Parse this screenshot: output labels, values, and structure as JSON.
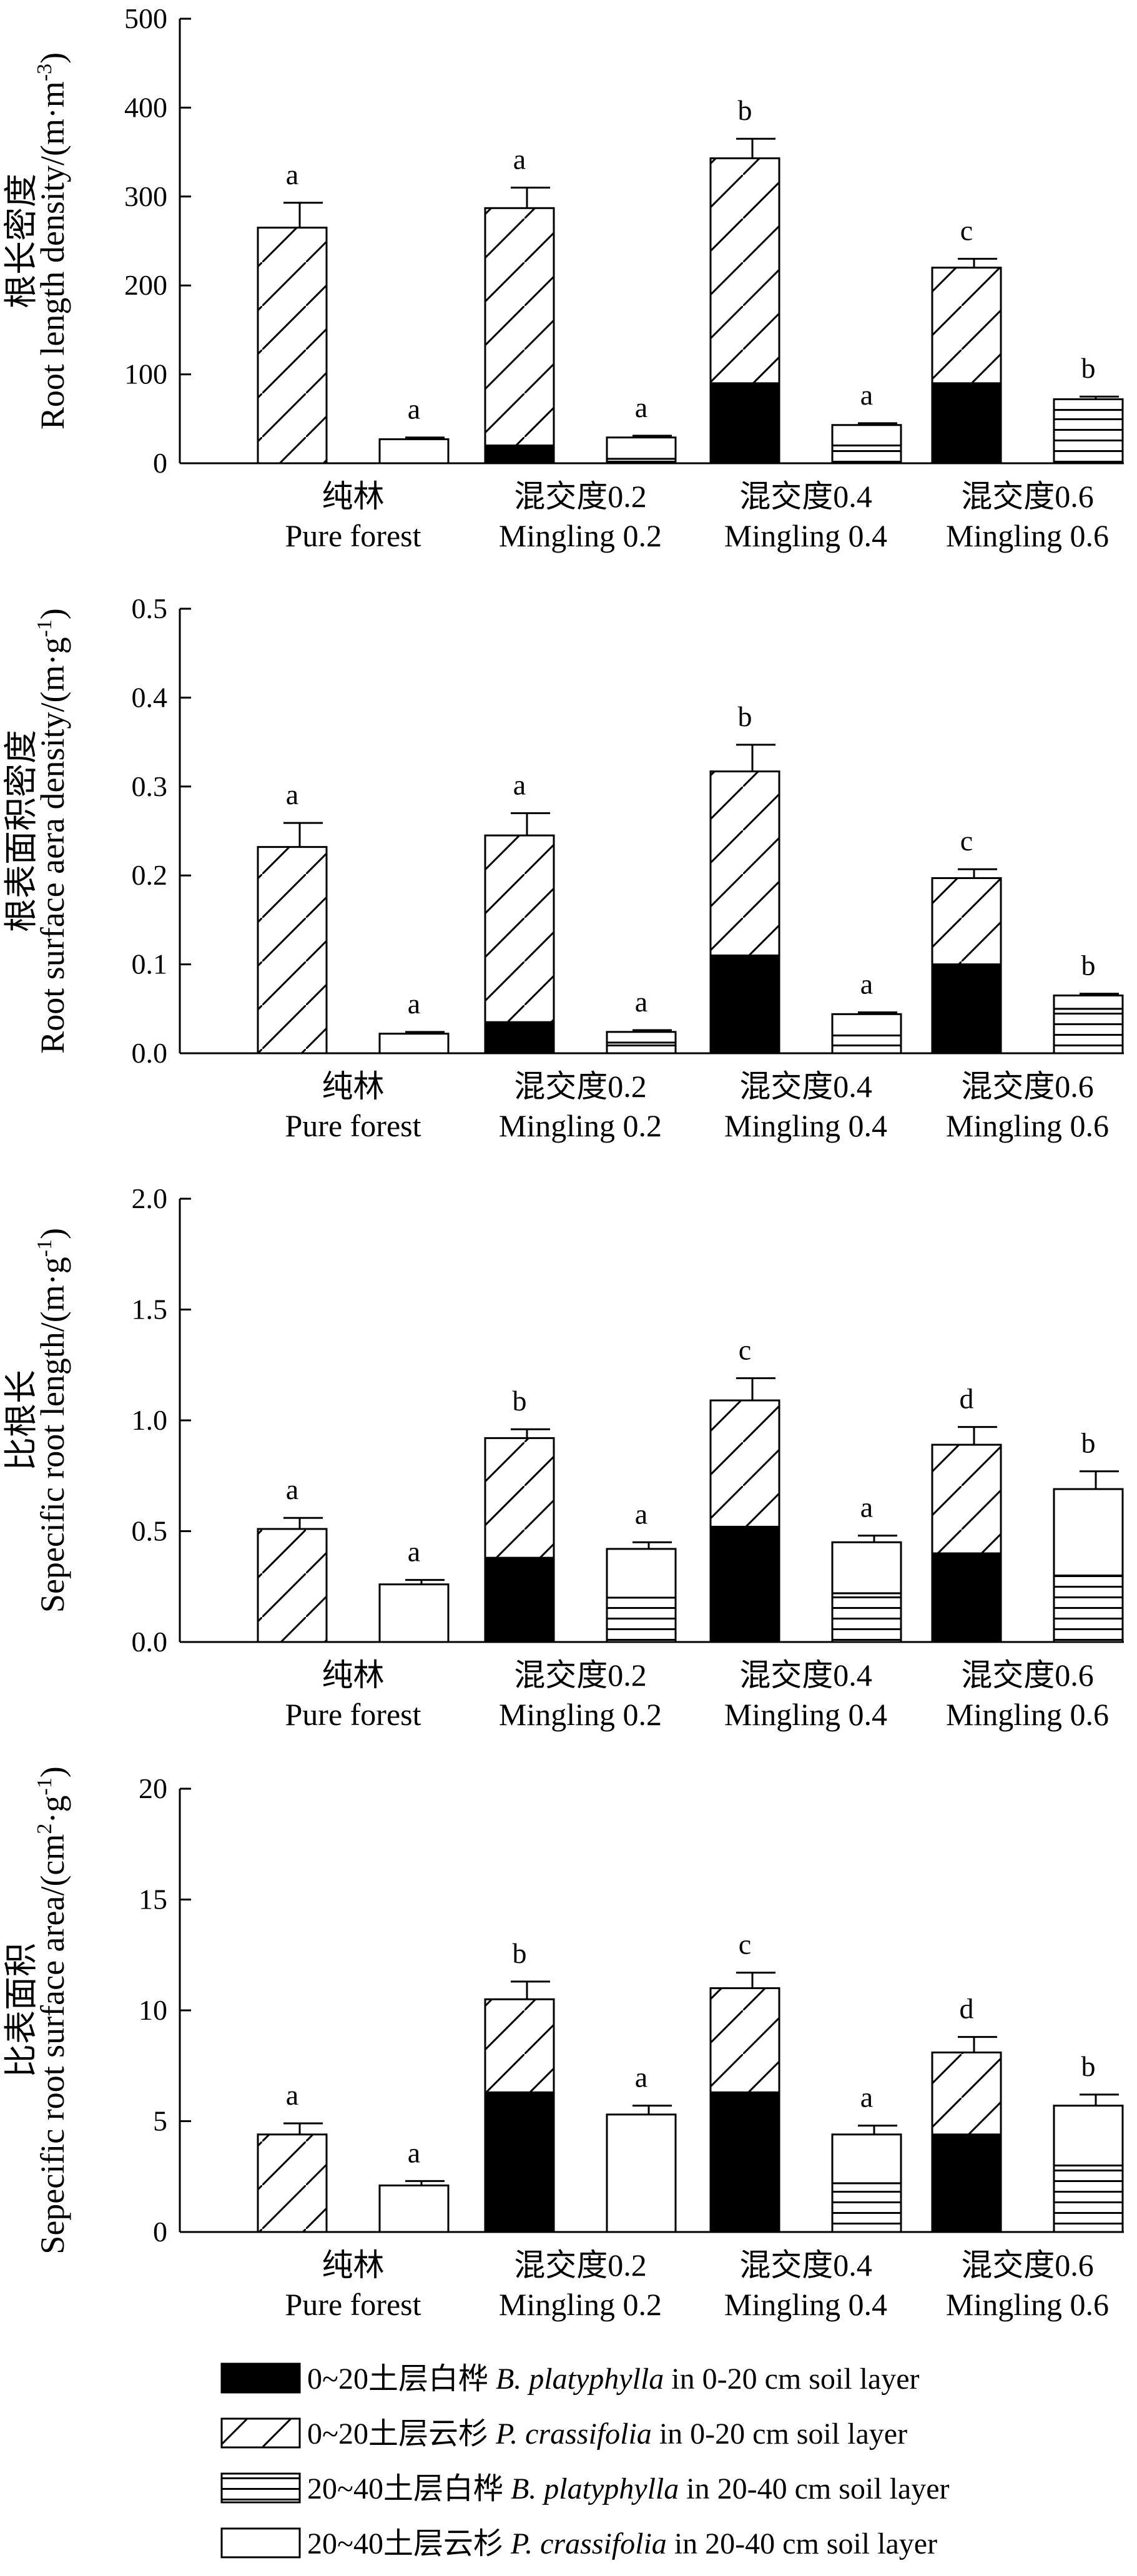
{
  "legend": [
    {
      "key": "bp0",
      "cn": "0~20土层白桦",
      "sp": "B. platyphylla",
      "rest": " in 0-20 cm soil layer",
      "fill": "solid"
    },
    {
      "key": "pc0",
      "cn": "0~20土层云杉",
      "sp": "P. crassifolia",
      "rest": " in 0-20 cm soil layer",
      "fill": "diag"
    },
    {
      "key": "bp2",
      "cn": "20~40土层白桦",
      "sp": "B. platyphylla",
      "rest": " in 20-40 cm soil layer",
      "fill": "horiz"
    },
    {
      "key": "pc2",
      "cn": "20~40土层云杉",
      "sp": "P. crassifolia",
      "rest": " in 20-40 cm soil layer",
      "fill": "open"
    }
  ],
  "chart_data": [
    {
      "type": "bar",
      "stacked": true,
      "ylabel_cn": "根长密度",
      "ylabel_en": "Root length density/(m·m",
      "ylabel_sup": "-3",
      "ylabel_end": ")",
      "ylim": [
        0,
        500
      ],
      "yticks": [
        "0",
        "100",
        "200",
        "300",
        "400",
        "500"
      ],
      "categories": [
        {
          "cn": "纯林",
          "en": "Pure forest"
        },
        {
          "cn": "混交度0.2",
          "en": "Mingling 0.2"
        },
        {
          "cn": "混交度0.4",
          "en": "Mingling 0.4"
        },
        {
          "cn": "混交度0.6",
          "en": "Mingling 0.6"
        }
      ],
      "topsoil": {
        "bp": [
          0,
          20,
          90,
          90
        ],
        "pc": [
          265,
          267,
          253,
          130
        ],
        "err": [
          28,
          23,
          22,
          10
        ],
        "letters": [
          "a",
          "a",
          "b",
          "c"
        ]
      },
      "subsoil": {
        "bp": [
          0,
          5,
          20,
          60
        ],
        "pc": [
          27,
          24,
          23,
          12
        ],
        "err": [
          2,
          2,
          2,
          3
        ],
        "letters": [
          "a",
          "a",
          "a",
          "b"
        ]
      }
    },
    {
      "type": "bar",
      "stacked": true,
      "ylabel_cn": "根表面积密度",
      "ylabel_en": "Root surface aera density/(m·g",
      "ylabel_sup": "-1",
      "ylabel_end": ")",
      "ylim": [
        0,
        0.5
      ],
      "yticks": [
        "0.0",
        "0.1",
        "0.2",
        "0.3",
        "0.4",
        "0.5"
      ],
      "categories": [
        {
          "cn": "纯林",
          "en": "Pure forest"
        },
        {
          "cn": "混交度0.2",
          "en": "Mingling 0.2"
        },
        {
          "cn": "混交度0.4",
          "en": "Mingling 0.4"
        },
        {
          "cn": "混交度0.6",
          "en": "Mingling 0.6"
        }
      ],
      "topsoil": {
        "bp": [
          0,
          0.035,
          0.11,
          0.1
        ],
        "pc": [
          0.232,
          0.21,
          0.207,
          0.097
        ],
        "err": [
          0.027,
          0.025,
          0.03,
          0.01
        ],
        "letters": [
          "a",
          "a",
          "b",
          "c"
        ]
      },
      "subsoil": {
        "bp": [
          0,
          0.012,
          0.02,
          0.05
        ],
        "pc": [
          0.022,
          0.012,
          0.024,
          0.015
        ],
        "err": [
          0.002,
          0.002,
          0.002,
          0.002
        ],
        "letters": [
          "a",
          "a",
          "a",
          "b"
        ]
      }
    },
    {
      "type": "bar",
      "stacked": true,
      "ylabel_cn": "比根长",
      "ylabel_en": "Sepecific root length/(m·g",
      "ylabel_sup": "-1",
      "ylabel_end": ")",
      "ylim": [
        0,
        2.0
      ],
      "yticks": [
        "0.0",
        "0.5",
        "1.0",
        "1.5",
        "2.0"
      ],
      "categories": [
        {
          "cn": "纯林",
          "en": "Pure forest"
        },
        {
          "cn": "混交度0.2",
          "en": "Mingling 0.2"
        },
        {
          "cn": "混交度0.4",
          "en": "Mingling 0.4"
        },
        {
          "cn": "混交度0.6",
          "en": "Mingling 0.6"
        }
      ],
      "topsoil": {
        "bp": [
          0,
          0.38,
          0.52,
          0.4
        ],
        "pc": [
          0.51,
          0.54,
          0.57,
          0.49
        ],
        "err": [
          0.05,
          0.04,
          0.1,
          0.08
        ],
        "letters": [
          "a",
          "b",
          "c",
          "d"
        ]
      },
      "subsoil": {
        "bp": [
          0,
          0.2,
          0.22,
          0.3
        ],
        "pc": [
          0.26,
          0.22,
          0.23,
          0.39
        ],
        "err": [
          0.02,
          0.03,
          0.03,
          0.08
        ],
        "letters": [
          "a",
          "a",
          "a",
          "b"
        ]
      }
    },
    {
      "type": "bar",
      "stacked": true,
      "ylabel_cn": "比表面积",
      "ylabel_en": "Sepecific root surface area/(cm",
      "ylabel_sup": "2",
      "ylabel_mid": "·g",
      "ylabel_sup2": "-1",
      "ylabel_end": ")",
      "ylim": [
        0,
        20
      ],
      "yticks": [
        "0",
        "5",
        "10",
        "15",
        "20"
      ],
      "categories": [
        {
          "cn": "纯林",
          "en": "Pure forest"
        },
        {
          "cn": "混交度0.2",
          "en": "Mingling 0.2"
        },
        {
          "cn": "混交度0.4",
          "en": "Mingling 0.4"
        },
        {
          "cn": "混交度0.6",
          "en": "Mingling 0.6"
        }
      ],
      "topsoil": {
        "bp": [
          0,
          6.3,
          6.3,
          4.4
        ],
        "pc": [
          4.4,
          4.2,
          4.7,
          3.7
        ],
        "err": [
          0.5,
          0.8,
          0.7,
          0.7
        ],
        "letters": [
          "a",
          "b",
          "c",
          "d"
        ]
      },
      "subsoil": {
        "bp": [
          0,
          0,
          2.2,
          3.0
        ],
        "pc": [
          2.1,
          5.3,
          2.2,
          2.7
        ],
        "err": [
          0.2,
          0.4,
          0.4,
          0.5
        ],
        "letters": [
          "a",
          "a",
          "a",
          "b"
        ]
      }
    }
  ]
}
